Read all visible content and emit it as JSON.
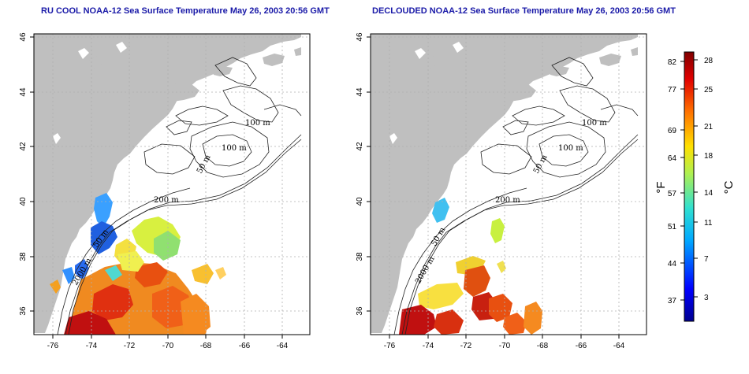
{
  "titles": {
    "left": "RU COOL NOAA-12 Sea Surface Temperature May 26, 2003 20:56 GMT",
    "right": "DECLOUDED NOAA-12 Sea Surface Temperature May 26, 2003 20:56 GMT"
  },
  "axes": {
    "x_ticks": [
      "-76",
      "-74",
      "-72",
      "-70",
      "-68",
      "-66",
      "-64"
    ],
    "y_ticks": [
      "36",
      "38",
      "40",
      "42",
      "44",
      "46"
    ],
    "lon_range": [
      -77.2,
      -62.8
    ],
    "lat_range": [
      35.0,
      46.0
    ]
  },
  "contour_labels": {
    "left": [
      "100 m",
      "100 m",
      "50 m",
      "200 m",
      "50 m",
      "2000 m"
    ],
    "right": [
      "100 m",
      "100 m",
      "50 m",
      "200 m",
      "50 m",
      "2000 m"
    ]
  },
  "colorbar": {
    "fahrenheit_label": "°F",
    "celsius_label": "°C",
    "fahrenheit_ticks": [
      "82",
      "77",
      "69",
      "64",
      "57",
      "51",
      "44",
      "37"
    ],
    "celsius_ticks": [
      "28",
      "25",
      "21",
      "18",
      "14",
      "11",
      "7",
      "3"
    ],
    "celsius_range": [
      0,
      29
    ]
  },
  "colors": {
    "land": "#bfbfbf",
    "title": "#1a1aa8",
    "grid": "#b0b0b0"
  }
}
